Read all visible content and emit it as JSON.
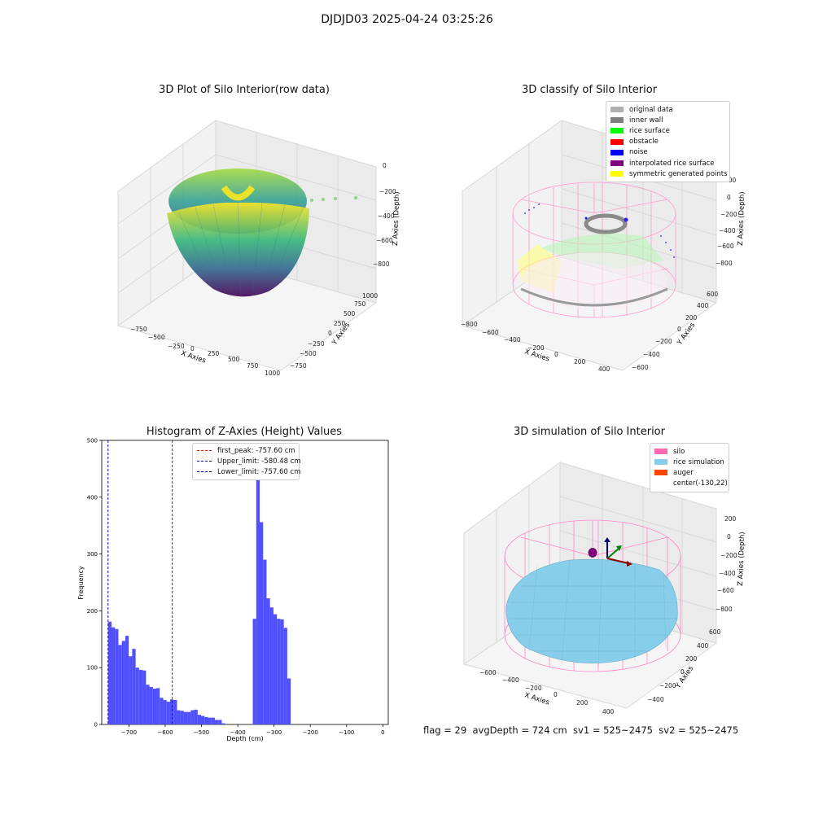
{
  "suptitle": "DJDJD03 2025-04-24 03:25:26",
  "panels": {
    "raw": {
      "title": "3D Plot of Silo Interior(row data)",
      "xlabel": "X Axies",
      "ylabel": "Y Axies",
      "zlabel": "Z Axies (Depth)",
      "xticks": [
        "−750",
        "−500",
        "−250",
        "0",
        "250",
        "500",
        "750",
        "1000"
      ],
      "yticks": [
        "1000",
        "750",
        "500",
        "250",
        "0",
        "−250",
        "−500",
        "−750"
      ],
      "zticks": [
        "0",
        "−200",
        "−400",
        "−600",
        "−800"
      ]
    },
    "classify": {
      "title": "3D classify of Silo Interior",
      "xlabel": "X Axies",
      "ylabel": "Y Axies",
      "zlabel": "Z Axies (Depth)",
      "xticks": [
        "−800",
        "−600",
        "−400",
        "−200",
        "0",
        "200",
        "400"
      ],
      "yticks": [
        "600",
        "400",
        "200",
        "0",
        "−200",
        "−400",
        "−600"
      ],
      "zticks": [
        "200",
        "0",
        "−200",
        "−400",
        "−600",
        "−800"
      ],
      "legend": [
        {
          "label": "original data",
          "color": "#b0b0b0"
        },
        {
          "label": "inner wall",
          "color": "#808080"
        },
        {
          "label": "rice surface",
          "color": "#00ff00"
        },
        {
          "label": "obstacle",
          "color": "#ff0000"
        },
        {
          "label": "noise",
          "color": "#0000ff"
        },
        {
          "label": "interpolated rice surface",
          "color": "#800080"
        },
        {
          "label": "symmetric generated points",
          "color": "#ffff00"
        }
      ]
    },
    "simulation": {
      "title": "3D simulation of Silo Interior",
      "xlabel": "X Axies",
      "ylabel": "Y Axies",
      "zlabel": "Z Axies (Depth)",
      "xticks": [
        "−600",
        "−400",
        "−200",
        "0",
        "200",
        "400"
      ],
      "yticks": [
        "600",
        "400",
        "200",
        "0",
        "−200",
        "−400"
      ],
      "zticks": [
        "200",
        "0",
        "−200",
        "−400",
        "−600",
        "−800"
      ],
      "legend": [
        {
          "label": "silo",
          "color": "#ff69b4"
        },
        {
          "label": "rice simulation",
          "color": "#87ceeb"
        },
        {
          "label": "auger",
          "color": "#ff4500"
        },
        {
          "label": "center(-130,22)",
          "color": "#ffffff"
        }
      ]
    }
  },
  "footer": "flag = 29  avgDepth = 724 cm  sv1 = 525~2475  sv2 = 525~2475",
  "colors": {
    "hist_bar": "#5050ff",
    "peak_line": "#ff0000",
    "limit_line": "#0000cc",
    "silo": "#ff69b4",
    "rice": "#87ceeb"
  },
  "chart_data": [
    {
      "type": "histogram",
      "title": "Histogram of Z-Axies (Height) Values",
      "xlabel": "Depth (cm)",
      "ylabel": "Frequency",
      "xlim": [
        -775,
        15
      ],
      "ylim": [
        0,
        500
      ],
      "xticks": [
        -700,
        -600,
        -500,
        -400,
        -300,
        -200,
        -100,
        0
      ],
      "yticks": [
        0,
        100,
        200,
        300,
        400,
        500
      ],
      "bin_start": -757.6,
      "bin_width": 9.5,
      "counts": [
        181,
        171,
        168,
        140,
        147,
        156,
        120,
        133,
        100,
        96,
        95,
        70,
        66,
        63,
        64,
        47,
        43,
        40,
        44,
        43,
        25,
        24,
        22,
        22,
        25,
        26,
        17,
        15,
        13,
        12,
        12,
        8,
        8,
        2,
        0,
        0,
        0,
        0,
        0,
        0,
        0,
        0,
        186,
        479,
        356,
        290,
        222,
        206,
        194,
        186,
        185,
        170,
        81
      ],
      "vlines": [
        {
          "label": "first_peak: -757.60 cm",
          "x": -757.6,
          "color": "#ff0000"
        },
        {
          "label": "Upper_limit: -580.48 cm",
          "x": -580.48,
          "color": "#0000cc"
        },
        {
          "label": "Lower_limit: -757.60 cm",
          "x": -757.6,
          "color": "#0000cc"
        }
      ],
      "legend_position": "top"
    }
  ]
}
